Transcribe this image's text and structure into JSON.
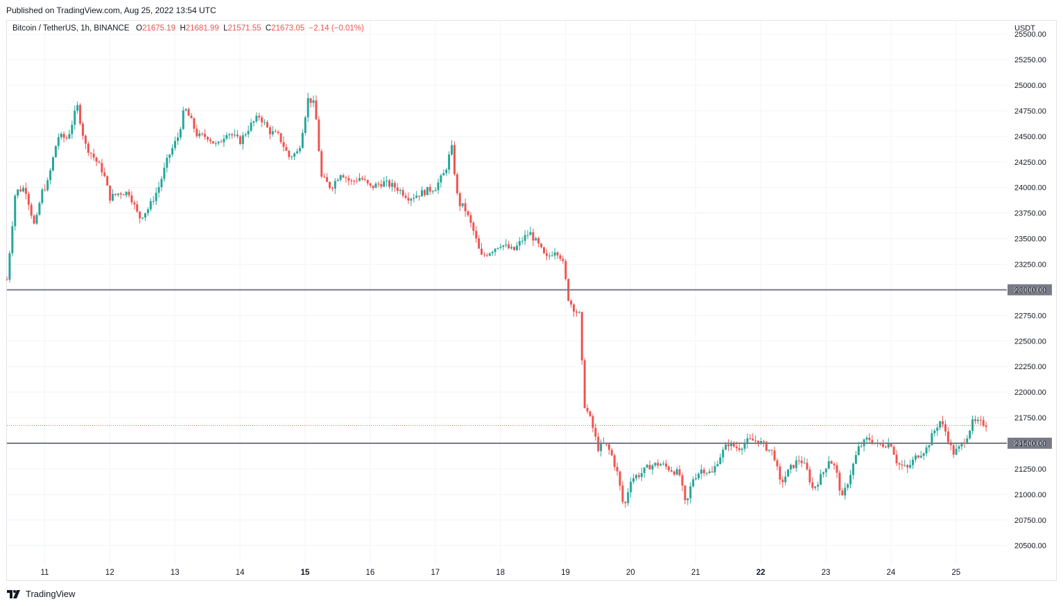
{
  "header": {
    "published": "Published on TradingView.com, Aug 25, 2022 13:54 UTC"
  },
  "legend": {
    "symbol": "Bitcoin / TetherUS, 1h, BINANCE",
    "o_label": "O",
    "o_value": "21675.19",
    "h_label": "H",
    "h_value": "21681.99",
    "l_label": "L",
    "l_value": "21571.55",
    "c_label": "C",
    "c_value": "21673.05",
    "change": "−2.14 (−0.01%)"
  },
  "footer": {
    "brand": "TradingView"
  },
  "colors": {
    "up": "#26a69a",
    "down": "#ef5350",
    "line": "#787b86",
    "grid": "#f0f3fa",
    "label_bg": "#787b86"
  },
  "chart_data": {
    "type": "candlestick",
    "symbol": "Bitcoin / TetherUS",
    "interval": "1h",
    "exchange": "BINANCE",
    "currency": "USDT",
    "y_ticks": [
      25500,
      25250,
      25000,
      24750,
      24500,
      24250,
      24000,
      23750,
      23500,
      23250,
      23000,
      22750,
      22500,
      22250,
      22000,
      21750,
      21500,
      21250,
      21000,
      20750,
      20500
    ],
    "y_tick_labels": [
      "25500.00",
      "25250.00",
      "25000.00",
      "24750.00",
      "24500.00",
      "24250.00",
      "24000.00",
      "23750.00",
      "23500.00",
      "23250.00",
      "23000.00",
      "22750.00",
      "22500.00",
      "22250.00",
      "22000.00",
      "21750.00",
      "21500.00",
      "21250.00",
      "21000.00",
      "20750.00",
      "20500.00"
    ],
    "ylim": [
      20315,
      25630
    ],
    "x_ticks": [
      11,
      12,
      13,
      14,
      15,
      16,
      17,
      18,
      19,
      20,
      21,
      22,
      23,
      24,
      25
    ],
    "x_tick_labels": [
      "11",
      "12",
      "13",
      "14",
      "15",
      "16",
      "17",
      "18",
      "19",
      "20",
      "21",
      "22",
      "23",
      "24",
      "25"
    ],
    "x_bold_ticks": [
      "15",
      "22"
    ],
    "xlim": [
      10.42,
      25.78
    ],
    "horizontal_lines": [
      {
        "price": 23000,
        "label": "23000.00"
      },
      {
        "price": 21500,
        "label": "21500.00"
      }
    ],
    "last_price": 21673.05,
    "close_path": [
      [
        10.42,
        23100
      ],
      [
        10.55,
        23960
      ],
      [
        10.7,
        24000
      ],
      [
        10.85,
        23600
      ],
      [
        10.95,
        23950
      ],
      [
        11.05,
        24050
      ],
      [
        11.2,
        24500
      ],
      [
        11.35,
        24480
      ],
      [
        11.5,
        24800
      ],
      [
        11.62,
        24420
      ],
      [
        11.75,
        24300
      ],
      [
        11.9,
        24150
      ],
      [
        12.0,
        23900
      ],
      [
        12.15,
        23950
      ],
      [
        12.3,
        23950
      ],
      [
        12.45,
        23700
      ],
      [
        12.6,
        23800
      ],
      [
        12.75,
        24000
      ],
      [
        12.9,
        24300
      ],
      [
        13.05,
        24500
      ],
      [
        13.15,
        24780
      ],
      [
        13.25,
        24650
      ],
      [
        13.35,
        24500
      ],
      [
        13.5,
        24500
      ],
      [
        13.65,
        24400
      ],
      [
        13.8,
        24550
      ],
      [
        14.0,
        24450
      ],
      [
        14.15,
        24600
      ],
      [
        14.3,
        24700
      ],
      [
        14.45,
        24550
      ],
      [
        14.6,
        24500
      ],
      [
        14.75,
        24300
      ],
      [
        14.9,
        24350
      ],
      [
        15.05,
        24880
      ],
      [
        15.15,
        24800
      ],
      [
        15.25,
        24100
      ],
      [
        15.4,
        24000
      ],
      [
        15.55,
        24150
      ],
      [
        15.7,
        24050
      ],
      [
        15.85,
        24100
      ],
      [
        16.0,
        24000
      ],
      [
        16.2,
        24050
      ],
      [
        16.4,
        24000
      ],
      [
        16.6,
        23900
      ],
      [
        16.8,
        23950
      ],
      [
        17.0,
        24000
      ],
      [
        17.15,
        24150
      ],
      [
        17.25,
        24400
      ],
      [
        17.35,
        23850
      ],
      [
        17.45,
        23800
      ],
      [
        17.6,
        23550
      ],
      [
        17.7,
        23320
      ],
      [
        17.85,
        23380
      ],
      [
        18.0,
        23450
      ],
      [
        18.2,
        23380
      ],
      [
        18.35,
        23500
      ],
      [
        18.45,
        23560
      ],
      [
        18.6,
        23420
      ],
      [
        18.7,
        23300
      ],
      [
        18.85,
        23400
      ],
      [
        18.95,
        23300
      ],
      [
        19.05,
        22900
      ],
      [
        19.15,
        22800
      ],
      [
        19.22,
        22750
      ],
      [
        19.28,
        21900
      ],
      [
        19.4,
        21700
      ],
      [
        19.5,
        21450
      ],
      [
        19.6,
        21500
      ],
      [
        19.7,
        21400
      ],
      [
        19.8,
        21200
      ],
      [
        19.9,
        20850
      ],
      [
        20.0,
        21150
      ],
      [
        20.15,
        21200
      ],
      [
        20.3,
        21280
      ],
      [
        20.45,
        21300
      ],
      [
        20.6,
        21250
      ],
      [
        20.75,
        21200
      ],
      [
        20.85,
        20870
      ],
      [
        20.95,
        21150
      ],
      [
        21.1,
        21250
      ],
      [
        21.25,
        21200
      ],
      [
        21.35,
        21350
      ],
      [
        21.5,
        21500
      ],
      [
        21.65,
        21450
      ],
      [
        21.8,
        21520
      ],
      [
        21.95,
        21530
      ],
      [
        22.1,
        21450
      ],
      [
        22.2,
        21400
      ],
      [
        22.3,
        21100
      ],
      [
        22.45,
        21250
      ],
      [
        22.6,
        21350
      ],
      [
        22.7,
        21250
      ],
      [
        22.8,
        21050
      ],
      [
        22.95,
        21200
      ],
      [
        23.05,
        21350
      ],
      [
        23.15,
        21250
      ],
      [
        23.25,
        20950
      ],
      [
        23.35,
        21150
      ],
      [
        23.5,
        21450
      ],
      [
        23.65,
        21550
      ],
      [
        23.8,
        21480
      ],
      [
        24.0,
        21500
      ],
      [
        24.1,
        21300
      ],
      [
        24.25,
        21250
      ],
      [
        24.4,
        21380
      ],
      [
        24.55,
        21450
      ],
      [
        24.65,
        21600
      ],
      [
        24.75,
        21720
      ],
      [
        24.85,
        21600
      ],
      [
        24.95,
        21400
      ],
      [
        25.05,
        21450
      ],
      [
        25.15,
        21550
      ],
      [
        25.25,
        21700
      ],
      [
        25.35,
        21700
      ],
      [
        25.45,
        21690
      ],
      [
        25.5,
        21673
      ]
    ]
  }
}
